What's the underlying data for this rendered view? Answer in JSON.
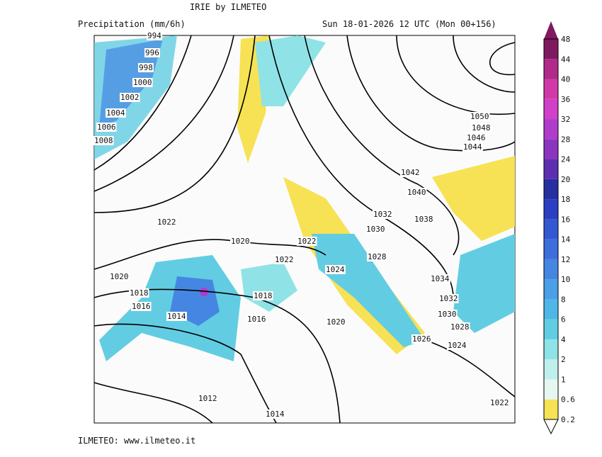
{
  "header": {
    "title": "IRIE by ILMETEO",
    "subtitle": "Precipitation (mm/6h)",
    "valid_time": "Sun 18-01-2026 12 UTC (Mon 00+156)"
  },
  "footer": {
    "credit": "ILMETEO: www.ilmeteo.it"
  },
  "colorbar": {
    "labels": [
      0.2,
      0.6,
      1,
      2,
      4,
      6,
      8,
      10,
      12,
      14,
      16,
      18,
      20,
      24,
      28,
      32,
      36,
      40,
      44,
      48
    ],
    "colors": [
      "#f6e254",
      "#e6f7f2",
      "#bff0ec",
      "#8fe3e6",
      "#62cde2",
      "#4fb7e6",
      "#4a9fe6",
      "#4586e2",
      "#3d6edb",
      "#3458d2",
      "#2a3fc2",
      "#2630a0",
      "#5c2fb0",
      "#8a34c0",
      "#b03ccc",
      "#d040c8",
      "#d03aa8",
      "#b02a88",
      "#801a60"
    ]
  },
  "isobar_labels": [
    "994",
    "996",
    "998",
    "1000",
    "1002",
    "1004",
    "1006",
    "1008",
    "1022",
    "1020",
    "1022",
    "1022",
    "1020",
    "1018",
    "1016",
    "1014",
    "1018",
    "1016",
    "1020",
    "1024",
    "1028",
    "1032",
    "1030",
    "1038",
    "1040",
    "1042",
    "1044",
    "1046",
    "1048",
    "1050",
    "1034",
    "1032",
    "1030",
    "1028",
    "1026",
    "1024",
    "1022",
    "1012",
    "1014"
  ]
}
